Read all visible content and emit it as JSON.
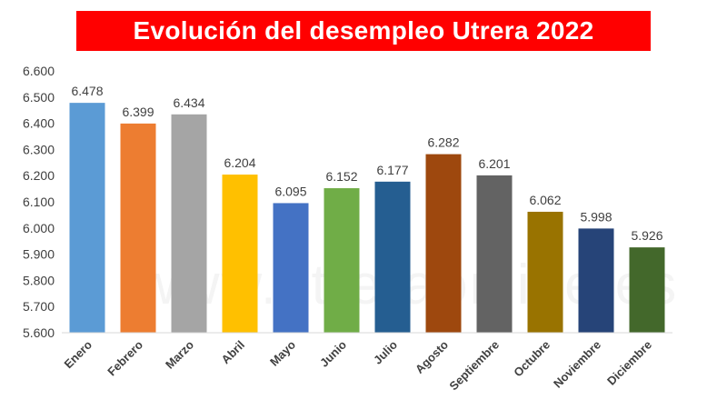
{
  "chart_data": {
    "type": "bar",
    "title": "Evolución del desempleo Utrera 2022",
    "categories": [
      "Enero",
      "Febrero",
      "Marzo",
      "Abril",
      "Mayo",
      "Junio",
      "Julio",
      "Agosto",
      "Septiembre",
      "Octubre",
      "Noviembre",
      "Diciembre"
    ],
    "values": [
      6478,
      6399,
      6434,
      6204,
      6095,
      6152,
      6177,
      6282,
      6201,
      6062,
      5998,
      5926
    ],
    "value_labels": [
      "6.478",
      "6.399",
      "6.434",
      "6.204",
      "6.095",
      "6.152",
      "6.177",
      "6.282",
      "6.201",
      "6.062",
      "5.998",
      "5.926"
    ],
    "colors": [
      "#5b9bd5",
      "#ed7d31",
      "#a5a5a5",
      "#ffc000",
      "#4472c4",
      "#70ad47",
      "#255e91",
      "#9e480e",
      "#636363",
      "#997300",
      "#264478",
      "#43682b"
    ],
    "ylim": [
      5600,
      6600
    ],
    "yticks": [
      5600,
      5700,
      5800,
      5900,
      6000,
      6100,
      6200,
      6300,
      6400,
      6500,
      6600
    ],
    "ytick_labels": [
      "5.600",
      "5.700",
      "5.800",
      "5.900",
      "6.000",
      "6.100",
      "6.200",
      "6.300",
      "6.400",
      "6.500",
      "6.600"
    ],
    "grid": false,
    "legend": "none",
    "xlabel": "",
    "ylabel": ""
  },
  "watermark": "www.utreraonline.es"
}
